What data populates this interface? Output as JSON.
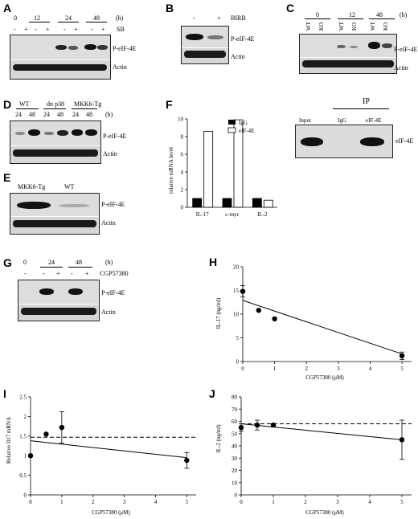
{
  "panels": {
    "A": {
      "label": "A",
      "time_unit": "(h)",
      "time_groups": [
        "0",
        "12",
        "24",
        "48"
      ],
      "treatment": "SB",
      "signs": [
        "-",
        "+",
        "-",
        "+",
        "-",
        "+",
        "-",
        "+"
      ],
      "rows": [
        "P-eIF-4E",
        "Actin"
      ]
    },
    "B": {
      "label": "B",
      "treatment": "BIRB",
      "signs": [
        "-",
        "+"
      ],
      "rows": [
        "P-eIF-4E",
        "Actin"
      ]
    },
    "C": {
      "label": "C",
      "time_unit": "(h)",
      "time_groups": [
        "0",
        "12",
        "48"
      ],
      "genotypes": [
        "WT",
        "KO",
        "WT",
        "KO",
        "WT",
        "KO"
      ],
      "rows": [
        "P-eIF-4E",
        "Actin"
      ]
    },
    "D": {
      "label": "D",
      "time_unit": "(h)",
      "groups": [
        "WT",
        "dn p38",
        "MKK6-Tg"
      ],
      "times": [
        "24",
        "48",
        "24",
        "48",
        "24",
        "48"
      ],
      "rows": [
        "P-eIF-4E",
        "Actin"
      ]
    },
    "E": {
      "label": "E",
      "groups": [
        "MKK6-Tg",
        "WT"
      ],
      "rows": [
        "P-eIF-4E",
        "Actin"
      ]
    },
    "F_ip": {
      "title": "IP",
      "lanes": [
        "Input",
        "IgG",
        "eIF-4E"
      ],
      "row": "eIF-4E"
    },
    "G": {
      "label": "G",
      "time_unit": "(h)",
      "time_groups": [
        "0",
        "24",
        "48"
      ],
      "treatment": "CGP57380",
      "signs": [
        "-",
        "-",
        "+",
        "-",
        "+"
      ],
      "rows": [
        "P-eIF-4E",
        "Actin"
      ]
    }
  },
  "colors": {
    "bar_igg": "#000000",
    "bar_eif4e": "#ffffff",
    "blot_bg": "#e8e8e8",
    "band": "#151515"
  },
  "chart_data": [
    {
      "panel": "F",
      "label": "F",
      "type": "bar",
      "categories": [
        "IL-17",
        "c-myc",
        "IL-2"
      ],
      "series": [
        {
          "name": "IgG",
          "values": [
            1,
            1,
            1
          ]
        },
        {
          "name": "eIF-4E",
          "values": [
            8.6,
            9.9,
            0.8
          ]
        }
      ],
      "ylabel": "relative mRNA level",
      "ylim": [
        0,
        10
      ],
      "yticks": [
        0,
        2,
        4,
        6,
        8,
        10
      ],
      "legend": "top-left"
    },
    {
      "panel": "H",
      "label": "H",
      "type": "scatter",
      "x": [
        0,
        0.5,
        1,
        5
      ],
      "y": [
        14.8,
        10.8,
        9.0,
        1.2
      ],
      "err": [
        1.2,
        0,
        0,
        0.8
      ],
      "fit": [
        [
          0,
          12.9
        ],
        [
          5,
          1.6
        ]
      ],
      "xlabel": "CGP57380 (μM)",
      "ylabel": "IL-17 (ng/ml)",
      "xlim": [
        0,
        5.3
      ],
      "ylim": [
        0,
        20
      ],
      "xticks": [
        0,
        1,
        2,
        3,
        4,
        5
      ],
      "yticks": [
        0,
        5,
        10,
        15,
        20
      ]
    },
    {
      "panel": "I",
      "label": "I",
      "type": "scatter",
      "x": [
        0,
        0.5,
        1,
        5
      ],
      "y": [
        1.0,
        1.55,
        1.72,
        0.88
      ],
      "err": [
        0,
        0,
        0.4,
        0.2
      ],
      "fit": [
        [
          0,
          1.38
        ],
        [
          5,
          0.95
        ]
      ],
      "baseline": 1.47,
      "xlabel": "CGP57380 (μM)",
      "ylabel": "Relative Il17 mRNA",
      "xlim": [
        0,
        5.3
      ],
      "ylim": [
        0,
        2.5
      ],
      "xticks": [
        0,
        1,
        2,
        3,
        4,
        5
      ],
      "yticks": [
        0,
        0.5,
        1,
        1.5,
        2,
        2.5
      ]
    },
    {
      "panel": "J",
      "label": "J",
      "type": "scatter",
      "x": [
        0,
        0.5,
        1,
        5
      ],
      "y": [
        55,
        57,
        57,
        45
      ],
      "err": [
        3,
        4,
        1,
        16
      ],
      "fit": [
        [
          0,
          58
        ],
        [
          5,
          45
        ]
      ],
      "baseline": 58,
      "xlabel": "CGP57380 (μM)",
      "ylabel": "IL-2 (ng/ml)",
      "xlim": [
        0,
        5.3
      ],
      "ylim": [
        0,
        80
      ],
      "xticks": [
        0,
        1,
        2,
        3,
        4,
        5
      ],
      "yticks": [
        0,
        10,
        20,
        30,
        40,
        50,
        60,
        70,
        80
      ]
    }
  ]
}
